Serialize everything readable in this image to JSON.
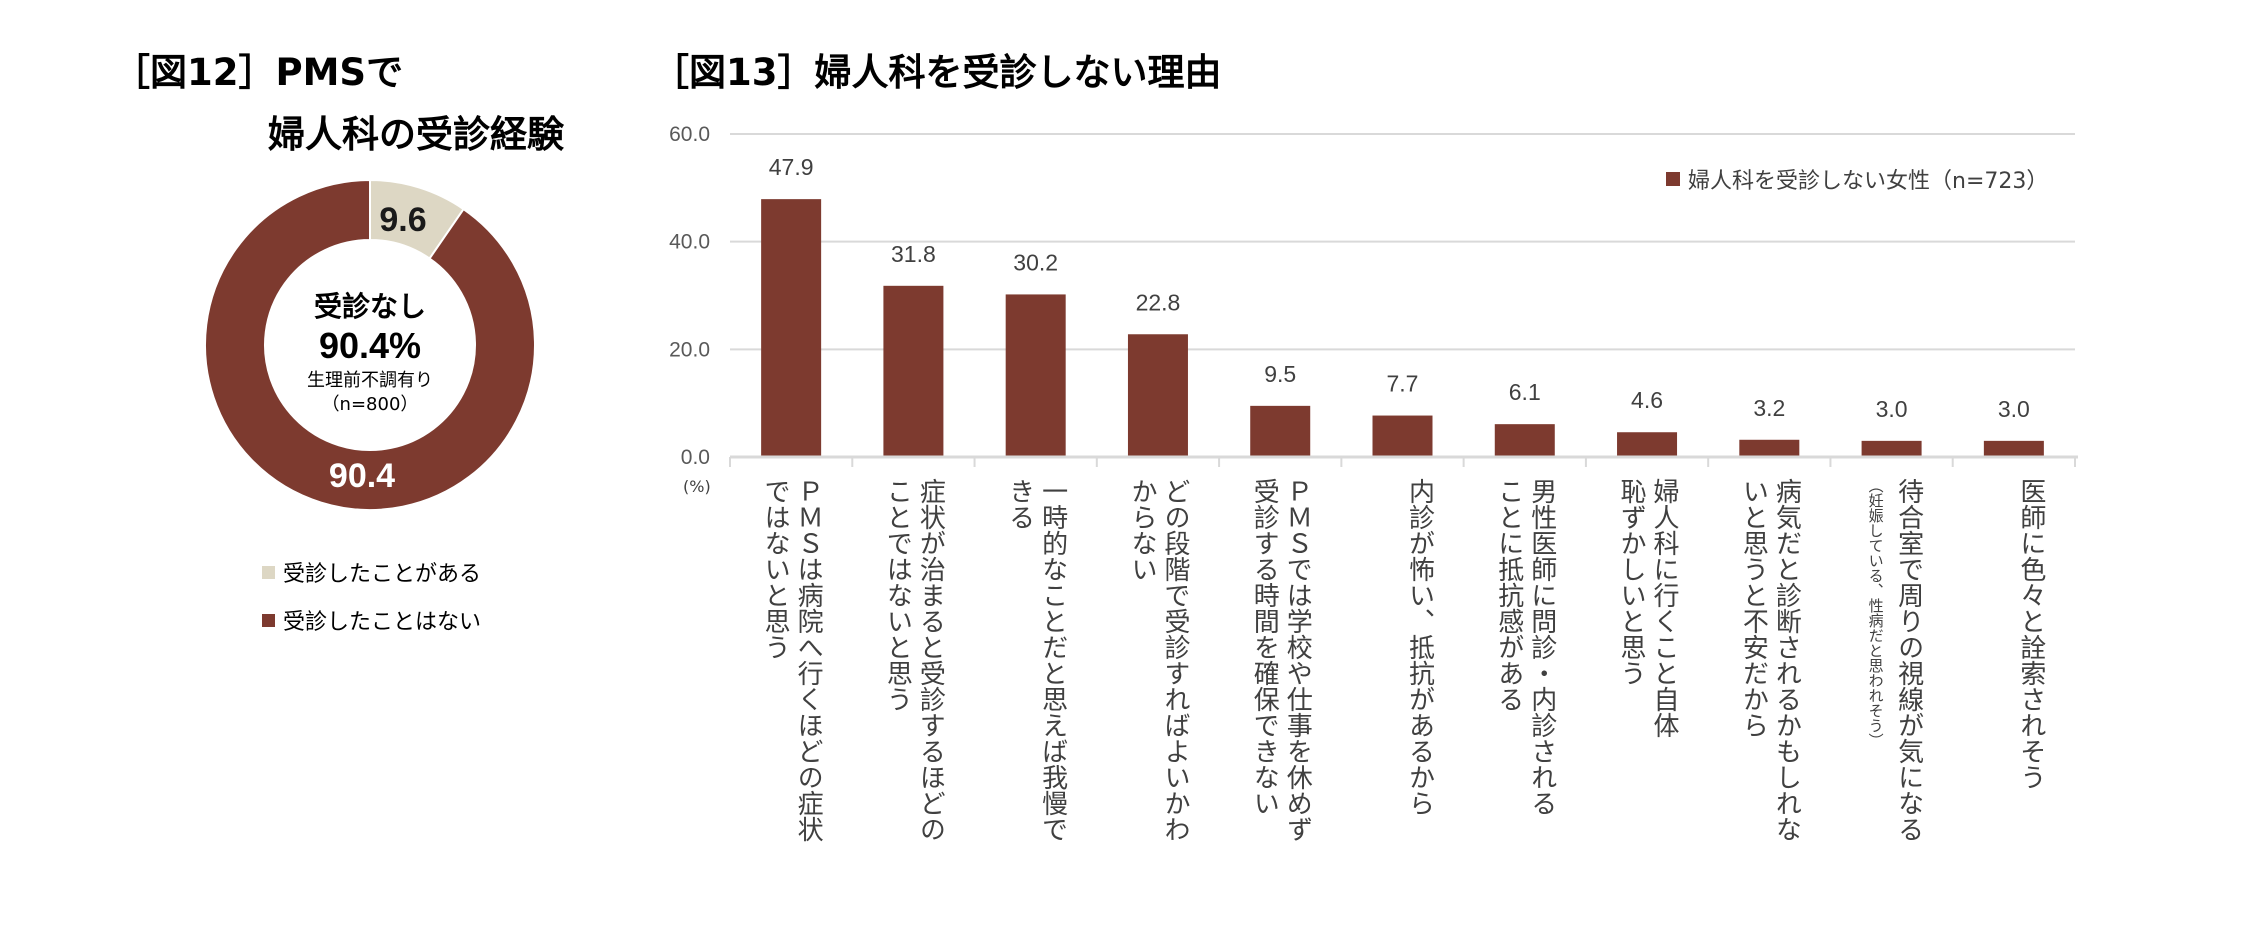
{
  "figure12": {
    "title_line1": "［図12］PMSで",
    "title_line2": "婦人科の受診経験",
    "center_label": "受診なし",
    "center_value": "90.4%",
    "center_sub": "生理前不調有り",
    "center_n": "（n=800）",
    "legend": [
      "受診したことがある",
      "受診したことはない"
    ],
    "colors": [
      "#ddd7c4",
      "#7d3a2f"
    ]
  },
  "figure13": {
    "title": "［図13］婦人科を受診しない理由",
    "unit": "(%)",
    "legend": "婦人科を受診しない女性（n=723）",
    "color": "#7d3a2f"
  },
  "chart_data": [
    {
      "type": "pie",
      "title": "［図12］PMSで 婦人科の受診経験",
      "categories": [
        "受診したことがある",
        "受診したことはない"
      ],
      "values": [
        9.6,
        90.4
      ],
      "value_labels": [
        "9.6",
        "90.4"
      ],
      "legend_position": "bottom"
    },
    {
      "type": "bar",
      "title": "［図13］婦人科を受診しない理由",
      "categories": [
        "ＰＭＳは病院へ行くほどの症状\nではないと思う",
        "症状が治まると受診するほどの\nことではないと思う",
        "一時的なことだと思えば我慢で\nきる",
        "どの段階で受診すればよいかわ\nからない",
        "ＰＭＳでは学校や仕事を休めず\n受診する時間を確保できない",
        "内診が怖い、抵抗があるから",
        "男性医師に問診・内診される\nことに抵抗感がある",
        "婦人科に行くこと自体\n恥ずかしいと思う",
        "病気だと診断されるかもしれな\nいと思うと不安だから",
        "待合室で周りの視線が気になる",
        "医師に色々と詮索されそう"
      ],
      "category_notes": [
        "",
        "",
        "",
        "",
        "",
        "",
        "",
        "",
        "",
        "（妊娠している、性病だと思われそう）",
        ""
      ],
      "series": [
        {
          "name": "婦人科を受診しない女性（n=723）",
          "values": [
            47.9,
            31.8,
            30.2,
            22.8,
            9.5,
            7.7,
            6.1,
            4.6,
            3.2,
            3.0,
            3.0
          ]
        }
      ],
      "value_labels": [
        "47.9",
        "31.8",
        "30.2",
        "22.8",
        "9.5",
        "7.7",
        "6.1",
        "4.6",
        "3.2",
        "3.0",
        "3.0"
      ],
      "yticks": [
        "0.0",
        "20.0",
        "40.0",
        "60.0"
      ],
      "ylim": [
        0,
        60
      ],
      "ylabel": "(%)",
      "grid": true,
      "legend_position": "top-right"
    }
  ]
}
